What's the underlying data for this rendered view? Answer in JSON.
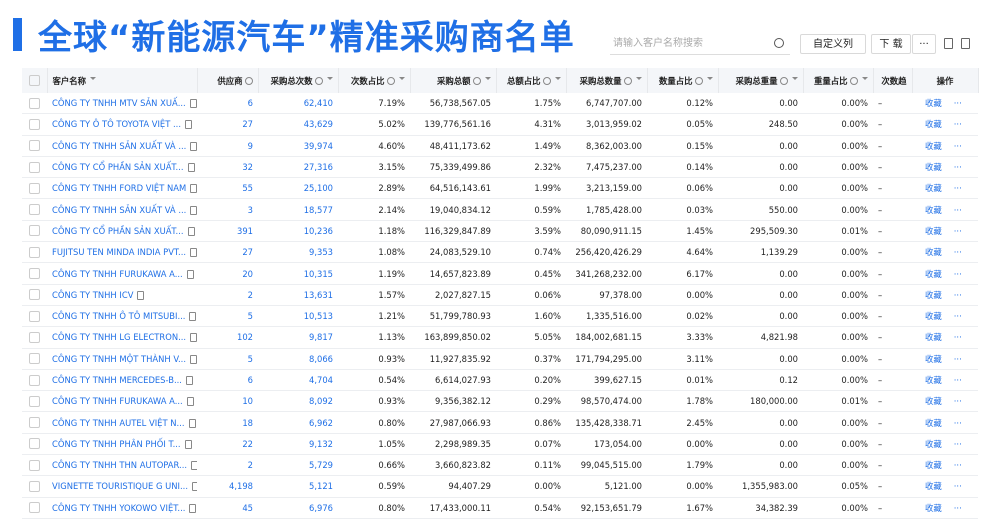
{
  "header": {
    "title": "全球“新能源汽车”精准采购商名单",
    "search_placeholder": "请输入客户名称搜索",
    "buttons": [
      "自定义列",
      "下 载",
      "···"
    ]
  },
  "table": {
    "columns": [
      "客户名称",
      "供应商",
      "采购总次数",
      "次数占比",
      "采购总额",
      "总额占比",
      "采购总数量",
      "数量占比",
      "采购总重量",
      "重量占比",
      "次数趋",
      "操作"
    ],
    "rows": [
      [
        "CÔNG TY TNHH MTV SẢN XUẤ...",
        "6",
        "62,410",
        "7.19%",
        "56,738,567.05",
        "1.75%",
        "6,747,707.00",
        "0.12%",
        "0.00",
        "0.00%",
        "–",
        "收藏",
        "···"
      ],
      [
        "CÔNG TY Ô TÔ TOYOTA VIỆT ...",
        "27",
        "43,629",
        "5.02%",
        "139,776,561.16",
        "4.31%",
        "3,013,959.02",
        "0.05%",
        "248.50",
        "0.00%",
        "–",
        "收藏",
        "···"
      ],
      [
        "CÔNG TY TNHH SẢN XUẤT VÀ ...",
        "9",
        "39,974",
        "4.60%",
        "48,411,173.62",
        "1.49%",
        "8,362,003.00",
        "0.15%",
        "0.00",
        "0.00%",
        "–",
        "收藏",
        "···"
      ],
      [
        "CÔNG TY CỔ PHẦN SẢN XUẤT...",
        "32",
        "27,316",
        "3.15%",
        "75,339,499.86",
        "2.32%",
        "7,475,237.00",
        "0.14%",
        "0.00",
        "0.00%",
        "–",
        "收藏",
        "···"
      ],
      [
        "CÔNG TY TNHH FORD VIỆT NAM",
        "55",
        "25,100",
        "2.89%",
        "64,516,143.61",
        "1.99%",
        "3,213,159.00",
        "0.06%",
        "0.00",
        "0.00%",
        "–",
        "收藏",
        "···"
      ],
      [
        "CÔNG TY TNHH SẢN XUẤT VÀ ...",
        "3",
        "18,577",
        "2.14%",
        "19,040,834.12",
        "0.59%",
        "1,785,428.00",
        "0.03%",
        "550.00",
        "0.00%",
        "–",
        "收藏",
        "···"
      ],
      [
        "CÔNG TY CỔ PHẦN SẢN XUẤT...",
        "391",
        "10,236",
        "1.18%",
        "116,329,847.89",
        "3.59%",
        "80,090,911.15",
        "1.45%",
        "295,509.30",
        "0.01%",
        "–",
        "收藏",
        "···"
      ],
      [
        "FUJITSU TEN MINDA INDIA PVT...",
        "27",
        "9,353",
        "1.08%",
        "24,083,529.10",
        "0.74%",
        "256,420,426.29",
        "4.64%",
        "1,139.29",
        "0.00%",
        "–",
        "收藏",
        "···"
      ],
      [
        "CÔNG TY TNHH FURUKAWA A...",
        "20",
        "10,315",
        "1.19%",
        "14,657,823.89",
        "0.45%",
        "341,268,232.00",
        "6.17%",
        "0.00",
        "0.00%",
        "–",
        "收藏",
        "···"
      ],
      [
        "CÔNG TY TNHH ICV",
        "2",
        "13,631",
        "1.57%",
        "2,027,827.15",
        "0.06%",
        "97,378.00",
        "0.00%",
        "0.00",
        "0.00%",
        "–",
        "收藏",
        "···"
      ],
      [
        "CÔNG TY TNHH Ô TÔ MITSUBI...",
        "5",
        "10,513",
        "1.21%",
        "51,799,780.93",
        "1.60%",
        "1,335,516.00",
        "0.02%",
        "0.00",
        "0.00%",
        "–",
        "收藏",
        "···"
      ],
      [
        "CÔNG TY TNHH LG ELECTRON...",
        "102",
        "9,817",
        "1.13%",
        "163,899,850.02",
        "5.05%",
        "184,002,681.15",
        "3.33%",
        "4,821.98",
        "0.00%",
        "–",
        "收藏",
        "···"
      ],
      [
        "CÔNG TY TNHH MỘT THÀNH V...",
        "5",
        "8,066",
        "0.93%",
        "11,927,835.92",
        "0.37%",
        "171,794,295.00",
        "3.11%",
        "0.00",
        "0.00%",
        "–",
        "收藏",
        "···"
      ],
      [
        "CÔNG TY TNHH MERCEDES-B...",
        "6",
        "4,704",
        "0.54%",
        "6,614,027.93",
        "0.20%",
        "399,627.15",
        "0.01%",
        "0.12",
        "0.00%",
        "–",
        "收藏",
        "···"
      ],
      [
        "CÔNG TY TNHH FURUKAWA A...",
        "10",
        "8,092",
        "0.93%",
        "9,356,382.12",
        "0.29%",
        "98,570,474.00",
        "1.78%",
        "180,000.00",
        "0.01%",
        "–",
        "收藏",
        "···"
      ],
      [
        "CÔNG TY TNHH AUTEL VIỆT N...",
        "18",
        "6,962",
        "0.80%",
        "27,987,066.93",
        "0.86%",
        "135,428,338.71",
        "2.45%",
        "0.00",
        "0.00%",
        "–",
        "收藏",
        "···"
      ],
      [
        "CÔNG TY TNHH PHÂN PHỐI T...",
        "22",
        "9,132",
        "1.05%",
        "2,298,989.35",
        "0.07%",
        "173,054.00",
        "0.00%",
        "0.00",
        "0.00%",
        "–",
        "收藏",
        "···"
      ],
      [
        "CÔNG TY TNHH THN AUTOPAR...",
        "2",
        "5,729",
        "0.66%",
        "3,660,823.82",
        "0.11%",
        "99,045,515.00",
        "1.79%",
        "0.00",
        "0.00%",
        "–",
        "收藏",
        "···"
      ],
      [
        "VIGNETTE TOURISTIQUE G UNI...",
        "4,198",
        "5,121",
        "0.59%",
        "94,407.29",
        "0.00%",
        "5,121.00",
        "0.00%",
        "1,355,983.00",
        "0.05%",
        "–",
        "收藏",
        "···"
      ],
      [
        "CÔNG TY TNHH YOKOWO VIỆT...",
        "45",
        "6,976",
        "0.80%",
        "17,433,000.11",
        "0.54%",
        "92,153,651.79",
        "1.67%",
        "34,382.39",
        "0.00%",
        "–",
        "收藏",
        "···"
      ]
    ]
  }
}
